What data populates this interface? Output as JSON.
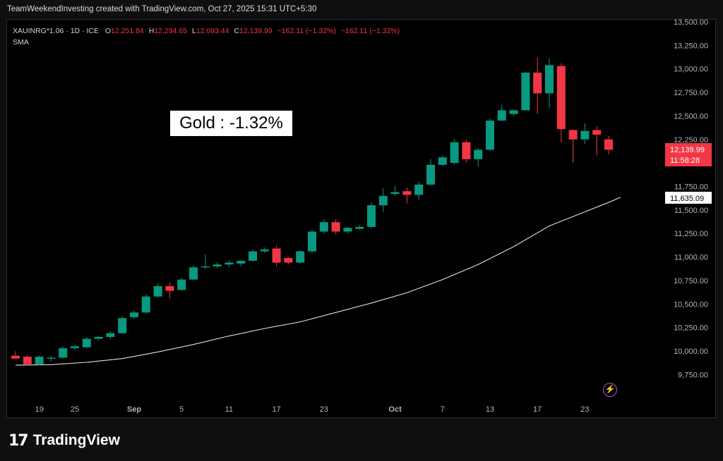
{
  "header": {
    "caption": "TeamWeekendInvesting created with TradingView.com, Oct 27, 2025 15:31 UTC+5:30"
  },
  "legend": {
    "symbol": "XAUINRG*1.06 · 1D · ICE",
    "o_label": "O",
    "o_value": "12,251.84",
    "h_label": "H",
    "h_value": "12,294.65",
    "l_label": "L",
    "l_value": "12,093.44",
    "c_label": "C",
    "c_value": "12,139.99",
    "change": "−162.11 (−1.32%)",
    "change2": "−162.11 (−1.32%)",
    "indicator": "SMA"
  },
  "annotation": {
    "text": "Gold : -1.32%"
  },
  "price_tags": {
    "last_price": "12,139.99",
    "countdown": "11:58:28",
    "sma_value": "11,635.09"
  },
  "footer": {
    "brand": "TradingView",
    "brand_mark": "17"
  },
  "colors": {
    "up": "#089981",
    "down": "#f23645",
    "background": "#000000",
    "sma": "#e0e0e0",
    "bolt": "#b84dd6"
  },
  "icons": {
    "alert": "lightning-icon"
  },
  "chart_data": {
    "type": "candlestick",
    "title": "",
    "xlabel": "",
    "ylabel": "",
    "ylim": [
      9600,
      13550
    ],
    "y_ticks": [
      "13,500.00",
      "13,250.00",
      "13,000.00",
      "12,750.00",
      "12,500.00",
      "12,250.00",
      "12,000.00",
      "11,750.00",
      "11,500.00",
      "11,250.00",
      "11,000.00",
      "10,750.00",
      "10,500.00",
      "10,250.00",
      "10,000.00",
      "9,750.00"
    ],
    "y_tick_values": [
      13500,
      13250,
      13000,
      12750,
      12500,
      12250,
      12000,
      11750,
      11500,
      11250,
      11000,
      10750,
      10500,
      10250,
      10000,
      9750
    ],
    "x_ticks": [
      {
        "label": "19",
        "index": 1
      },
      {
        "label": "25",
        "index": 5
      },
      {
        "label": "Sep",
        "index": 10
      },
      {
        "label": "5",
        "index": 14
      },
      {
        "label": "11",
        "index": 18
      },
      {
        "label": "17",
        "index": 22
      },
      {
        "label": "23",
        "index": 26
      },
      {
        "label": "Oct",
        "index": 32
      },
      {
        "label": "7",
        "index": 36
      },
      {
        "label": "13",
        "index": 40
      },
      {
        "label": "17",
        "index": 44
      },
      {
        "label": "23",
        "index": 48
      }
    ],
    "grid": false,
    "series": [
      {
        "name": "XAUINRG*1.06",
        "candles": [
          {
            "o": 9950,
            "h": 10000,
            "l": 9920,
            "c": 9920
          },
          {
            "o": 9940,
            "h": 9960,
            "l": 9850,
            "c": 9860
          },
          {
            "o": 9860,
            "h": 9950,
            "l": 9850,
            "c": 9940
          },
          {
            "o": 9920,
            "h": 9950,
            "l": 9890,
            "c": 9930
          },
          {
            "o": 9930,
            "h": 10050,
            "l": 9920,
            "c": 10030
          },
          {
            "o": 10030,
            "h": 10060,
            "l": 10010,
            "c": 10050
          },
          {
            "o": 10040,
            "h": 10150,
            "l": 10030,
            "c": 10130
          },
          {
            "o": 10130,
            "h": 10160,
            "l": 10110,
            "c": 10150
          },
          {
            "o": 10150,
            "h": 10210,
            "l": 10130,
            "c": 10190
          },
          {
            "o": 10190,
            "h": 10370,
            "l": 10180,
            "c": 10350
          },
          {
            "o": 10360,
            "h": 10430,
            "l": 10340,
            "c": 10410
          },
          {
            "o": 10410,
            "h": 10600,
            "l": 10400,
            "c": 10580
          },
          {
            "o": 10580,
            "h": 10720,
            "l": 10570,
            "c": 10690
          },
          {
            "o": 10690,
            "h": 10730,
            "l": 10560,
            "c": 10640
          },
          {
            "o": 10650,
            "h": 10780,
            "l": 10640,
            "c": 10760
          },
          {
            "o": 10760,
            "h": 10910,
            "l": 10750,
            "c": 10890
          },
          {
            "o": 10900,
            "h": 11030,
            "l": 10870,
            "c": 10900
          },
          {
            "o": 10900,
            "h": 10940,
            "l": 10880,
            "c": 10920
          },
          {
            "o": 10920,
            "h": 10960,
            "l": 10890,
            "c": 10940
          },
          {
            "o": 10930,
            "h": 10960,
            "l": 10900,
            "c": 10960
          },
          {
            "o": 10960,
            "h": 11080,
            "l": 10950,
            "c": 11060
          },
          {
            "o": 11060,
            "h": 11100,
            "l": 11040,
            "c": 11080
          },
          {
            "o": 11090,
            "h": 11120,
            "l": 10900,
            "c": 10940
          },
          {
            "o": 10990,
            "h": 11000,
            "l": 10920,
            "c": 10940
          },
          {
            "o": 10940,
            "h": 11070,
            "l": 10930,
            "c": 11060
          },
          {
            "o": 11060,
            "h": 11290,
            "l": 11040,
            "c": 11270
          },
          {
            "o": 11270,
            "h": 11400,
            "l": 11250,
            "c": 11370
          },
          {
            "o": 11370,
            "h": 11400,
            "l": 11240,
            "c": 11270
          },
          {
            "o": 11270,
            "h": 11320,
            "l": 11250,
            "c": 11310
          },
          {
            "o": 11300,
            "h": 11340,
            "l": 11290,
            "c": 11320
          },
          {
            "o": 11320,
            "h": 11580,
            "l": 11310,
            "c": 11550
          },
          {
            "o": 11550,
            "h": 11730,
            "l": 11480,
            "c": 11650
          },
          {
            "o": 11670,
            "h": 11760,
            "l": 11650,
            "c": 11690
          },
          {
            "o": 11700,
            "h": 11740,
            "l": 11570,
            "c": 11660
          },
          {
            "o": 11660,
            "h": 11800,
            "l": 11610,
            "c": 11770
          },
          {
            "o": 11770,
            "h": 12040,
            "l": 11760,
            "c": 11980
          },
          {
            "o": 11980,
            "h": 12080,
            "l": 11970,
            "c": 12060
          },
          {
            "o": 12000,
            "h": 12250,
            "l": 11980,
            "c": 12220
          },
          {
            "o": 12220,
            "h": 12250,
            "l": 12000,
            "c": 12040
          },
          {
            "o": 12040,
            "h": 12160,
            "l": 11960,
            "c": 12140
          },
          {
            "o": 12140,
            "h": 12470,
            "l": 12130,
            "c": 12450
          },
          {
            "o": 12450,
            "h": 12620,
            "l": 12450,
            "c": 12560
          },
          {
            "o": 12520,
            "h": 12570,
            "l": 12500,
            "c": 12560
          },
          {
            "o": 12560,
            "h": 12970,
            "l": 12560,
            "c": 12960
          },
          {
            "o": 12960,
            "h": 13120,
            "l": 12520,
            "c": 12740
          },
          {
            "o": 12740,
            "h": 13110,
            "l": 12580,
            "c": 13040
          },
          {
            "o": 13030,
            "h": 13060,
            "l": 12220,
            "c": 12360
          },
          {
            "o": 12350,
            "h": 12360,
            "l": 12000,
            "c": 12250
          },
          {
            "o": 12250,
            "h": 12420,
            "l": 12200,
            "c": 12340
          },
          {
            "o": 12350,
            "h": 12390,
            "l": 12080,
            "c": 12300
          },
          {
            "o": 12250,
            "h": 12290,
            "l": 12090,
            "c": 12140
          }
        ]
      },
      {
        "name": "SMA",
        "points": [
          [
            0,
            9850
          ],
          [
            3,
            9855
          ],
          [
            6,
            9880
          ],
          [
            9,
            9920
          ],
          [
            12,
            9990
          ],
          [
            15,
            10070
          ],
          [
            18,
            10160
          ],
          [
            21,
            10240
          ],
          [
            24,
            10310
          ],
          [
            27,
            10410
          ],
          [
            30,
            10510
          ],
          [
            33,
            10620
          ],
          [
            36,
            10760
          ],
          [
            39,
            10920
          ],
          [
            42,
            11110
          ],
          [
            45,
            11330
          ],
          [
            48,
            11480
          ],
          [
            50,
            11580
          ],
          [
            51,
            11635
          ]
        ]
      }
    ]
  }
}
